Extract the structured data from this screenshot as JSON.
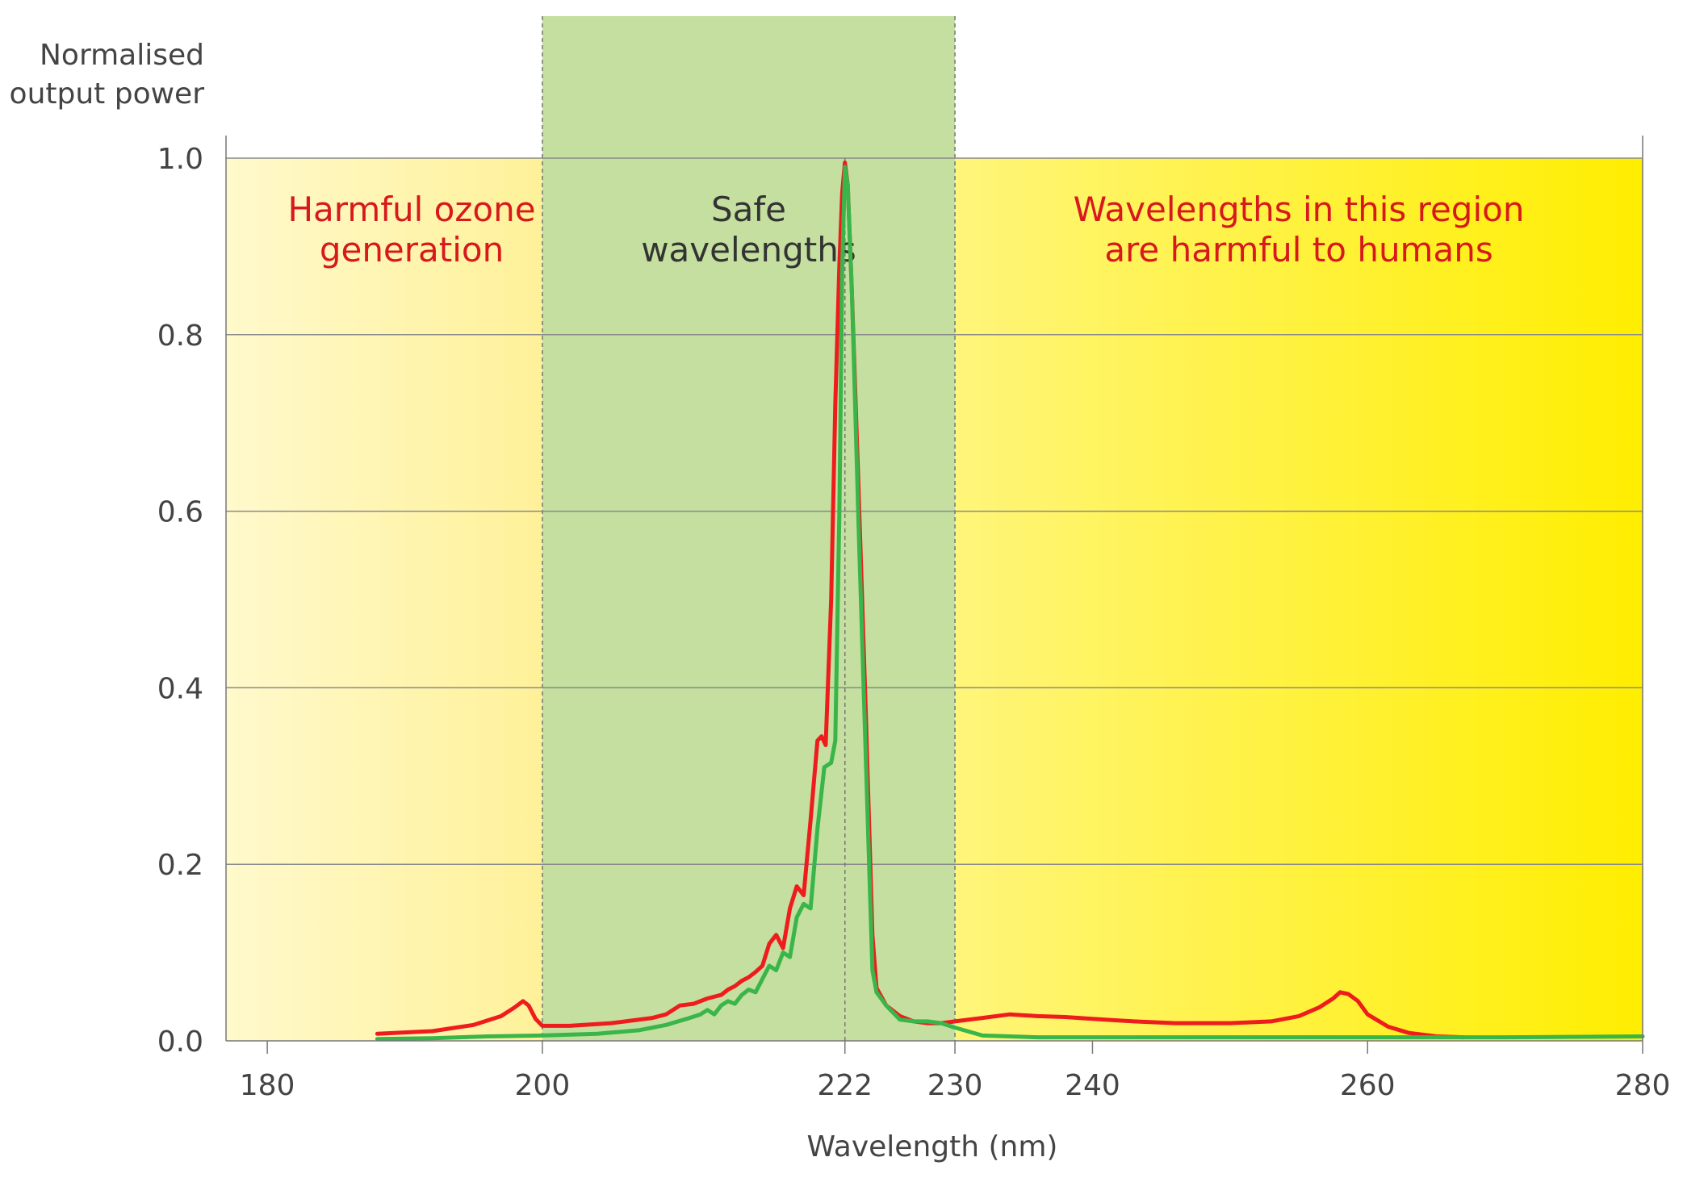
{
  "chart_data": {
    "type": "line",
    "ylabel_lines": [
      "Normalised",
      "output power"
    ],
    "xlabel": "Wavelength (nm)",
    "xlim": [
      177,
      280
    ],
    "ylim": [
      0,
      1.0
    ],
    "x_ticks": [
      180,
      200,
      222,
      230,
      240,
      260,
      280
    ],
    "y_ticks": [
      0.0,
      0.2,
      0.4,
      0.6,
      0.8,
      1.0
    ],
    "y_tick_labels": [
      "0.0",
      "0.2",
      "0.4",
      "0.6",
      "0.8",
      "1.0"
    ],
    "grid": "horizontal",
    "regions": [
      {
        "from": 177,
        "to": 200,
        "label_lines": [
          "Harmful ozone",
          "generation"
        ],
        "text_color": "#d7191c"
      },
      {
        "from": 200,
        "to": 230,
        "label_lines": [
          "Safe",
          "wavelengths"
        ],
        "text_color": "#333333"
      },
      {
        "from": 230,
        "to": 280,
        "label_lines": [
          "Wavelengths in this region",
          "are harmful to humans"
        ],
        "text_color": "#d7191c"
      }
    ],
    "marker_line_x": 222,
    "colors": {
      "ozone_region_start": "#fff9cc",
      "ozone_region_end": "#fff199",
      "safe_region": "#c4df9f",
      "harm_region_start": "#fff57a",
      "harm_region_end": "#ffee00",
      "red_series": "#ee1c1c",
      "green_series": "#3ab54a",
      "grid": "#8a8a8a"
    },
    "series": [
      {
        "color_key": "red_series",
        "x": [
          188,
          192,
          195,
          197,
          198,
          198.6,
          199,
          199.5,
          200,
          202,
          205,
          208,
          209,
          210,
          211,
          212,
          213,
          213.5,
          214,
          214.5,
          215,
          215.5,
          216,
          216.5,
          217,
          217.5,
          218,
          218.5,
          219,
          219.5,
          220,
          220.3,
          220.6,
          221,
          221.3,
          221.6,
          221.8,
          222,
          222.2,
          222.5,
          223,
          223.5,
          224,
          224.3,
          225,
          226,
          227,
          228,
          229,
          230,
          232,
          234,
          236,
          238,
          240,
          243,
          246,
          250,
          253,
          255,
          256.5,
          257.5,
          258,
          258.6,
          259.3,
          260,
          261.5,
          263,
          265,
          267
        ],
        "y": [
          0.008,
          0.011,
          0.018,
          0.028,
          0.038,
          0.045,
          0.04,
          0.025,
          0.017,
          0.017,
          0.02,
          0.026,
          0.03,
          0.04,
          0.042,
          0.048,
          0.052,
          0.058,
          0.062,
          0.068,
          0.072,
          0.078,
          0.085,
          0.11,
          0.12,
          0.105,
          0.15,
          0.175,
          0.165,
          0.25,
          0.34,
          0.345,
          0.335,
          0.5,
          0.72,
          0.88,
          0.96,
          0.995,
          0.97,
          0.85,
          0.62,
          0.38,
          0.12,
          0.06,
          0.04,
          0.028,
          0.022,
          0.02,
          0.02,
          0.022,
          0.026,
          0.03,
          0.028,
          0.027,
          0.025,
          0.022,
          0.02,
          0.02,
          0.022,
          0.028,
          0.038,
          0.048,
          0.055,
          0.053,
          0.045,
          0.03,
          0.016,
          0.009,
          0.005,
          0.004
        ]
      },
      {
        "color_key": "green_series",
        "x": [
          188,
          192,
          196,
          200,
          204,
          207,
          209,
          210.5,
          211.5,
          212,
          212.5,
          213,
          213.5,
          214,
          214.5,
          215,
          215.5,
          216,
          216.5,
          217,
          217.5,
          218,
          218.5,
          219,
          219.5,
          220,
          220.5,
          221,
          221.3,
          221.6,
          221.8,
          222,
          222.2,
          222.5,
          223,
          223.5,
          224,
          224.3,
          225,
          226,
          227,
          228,
          229,
          230,
          232,
          236,
          240,
          250,
          260,
          270,
          280
        ],
        "y": [
          0.002,
          0.003,
          0.005,
          0.006,
          0.008,
          0.012,
          0.018,
          0.025,
          0.03,
          0.035,
          0.03,
          0.04,
          0.045,
          0.042,
          0.052,
          0.058,
          0.055,
          0.07,
          0.085,
          0.08,
          0.1,
          0.095,
          0.14,
          0.155,
          0.15,
          0.24,
          0.31,
          0.315,
          0.34,
          0.6,
          0.87,
          0.99,
          0.97,
          0.85,
          0.58,
          0.33,
          0.08,
          0.055,
          0.04,
          0.024,
          0.022,
          0.022,
          0.02,
          0.015,
          0.006,
          0.004,
          0.004,
          0.004,
          0.004,
          0.004,
          0.005
        ]
      }
    ]
  }
}
